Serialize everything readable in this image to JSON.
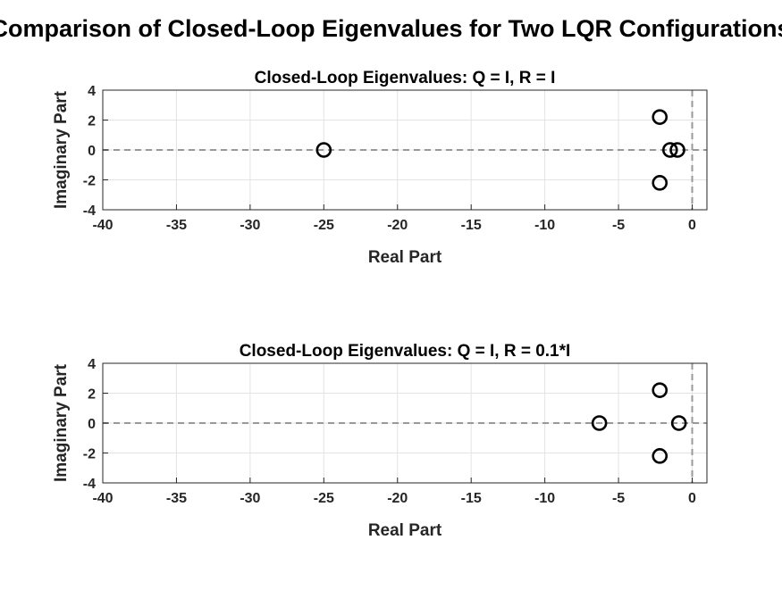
{
  "figure": {
    "suptitle": "Comparison of Closed-Loop Eigenvalues for Two LQR Configurations"
  },
  "chart_data": [
    {
      "type": "scatter",
      "title": "Closed-Loop Eigenvalues: Q = I, R = I",
      "xlabel": "Real Part",
      "ylabel": "Imaginary Part",
      "xlim": [
        -40,
        1
      ],
      "ylim": [
        -4,
        4
      ],
      "xticks": [
        -40,
        -35,
        -30,
        -25,
        -20,
        -15,
        -10,
        -5,
        0
      ],
      "yticks": [
        -4,
        -2,
        0,
        2,
        4
      ],
      "grid": true,
      "marker": "open-circle",
      "marker_color": "#000000",
      "reference_lines": {
        "x": 0,
        "y": 0,
        "style": "dashed",
        "color": "#999999"
      },
      "points": [
        {
          "x": -25.0,
          "y": 0
        },
        {
          "x": -2.2,
          "y": 2.2
        },
        {
          "x": -2.2,
          "y": -2.2
        },
        {
          "x": -1.5,
          "y": 0
        },
        {
          "x": -1.0,
          "y": 0
        }
      ]
    },
    {
      "type": "scatter",
      "title": "Closed-Loop Eigenvalues: Q = I, R = 0.1*I",
      "xlabel": "Real Part",
      "ylabel": "Imaginary Part",
      "xlim": [
        -40,
        1
      ],
      "ylim": [
        -4,
        4
      ],
      "xticks": [
        -40,
        -35,
        -30,
        -25,
        -20,
        -15,
        -10,
        -5,
        0
      ],
      "yticks": [
        -4,
        -2,
        0,
        2,
        4
      ],
      "grid": true,
      "marker": "open-circle",
      "marker_color": "#000000",
      "reference_lines": {
        "x": 0,
        "y": 0,
        "style": "dashed",
        "color": "#999999"
      },
      "points": [
        {
          "x": -6.3,
          "y": 0
        },
        {
          "x": -2.2,
          "y": 2.2
        },
        {
          "x": -2.2,
          "y": -2.2
        },
        {
          "x": -0.9,
          "y": 0
        }
      ]
    }
  ]
}
